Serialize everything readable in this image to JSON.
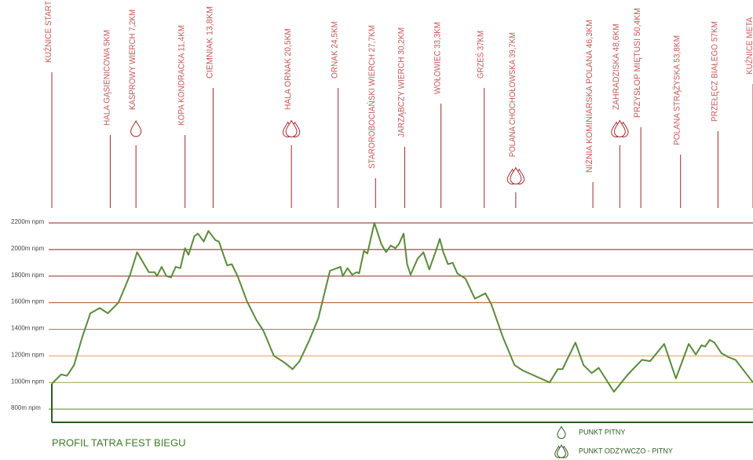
{
  "chart_data": {
    "type": "line",
    "title": "PROFIL TATRA FEST BIEGU",
    "xlim": [
      0,
      60
    ],
    "ylim": [
      700,
      2200
    ],
    "yticks": [
      {
        "value": 800,
        "label": "800m npm"
      },
      {
        "value": 1000,
        "label": "1000m npm"
      },
      {
        "value": 1200,
        "label": "1200m npm"
      },
      {
        "value": 1400,
        "label": "1400m npm"
      },
      {
        "value": 1600,
        "label": "1600m npm"
      },
      {
        "value": 1800,
        "label": "1800m npm"
      },
      {
        "value": 2000,
        "label": "2000m npm"
      },
      {
        "value": 2200,
        "label": "2200m npm"
      }
    ],
    "grid": true,
    "grid_colors": [
      "#5a8a3a",
      "#a0a040",
      "#e0a050",
      "#c8703a",
      "#b0502a",
      "#9a2a20",
      "#8b1f1f",
      "#8b1f1f"
    ],
    "x": [
      0,
      0.8,
      1.3,
      1.9,
      2.6,
      3.3,
      4.1,
      4.8,
      5.7,
      6.7,
      7.3,
      8.3,
      8.8,
      9.0,
      9.4,
      9.8,
      10.2,
      10.6,
      11.0,
      11.4,
      11.7,
      12.2,
      12.5,
      13.0,
      13.4,
      14.0,
      14.3,
      15.0,
      15.4,
      15.9,
      16.7,
      17.5,
      18.1,
      19.0,
      19.9,
      20.6,
      21.2,
      22.0,
      22.8,
      23.8,
      24.7,
      24.9,
      25.3,
      25.7,
      26.1,
      26.3,
      26.7,
      27.0,
      27.6,
      28.2,
      28.6,
      29.0,
      29.4,
      29.7,
      30.1,
      30.4,
      30.7,
      31.3,
      31.8,
      32.3,
      32.9,
      33.2,
      33.5,
      33.9,
      34.3,
      34.7,
      35.4,
      36.2,
      37.1,
      37.6,
      38.6,
      39.6,
      40.3,
      42.6,
      43.3,
      43.7,
      44.8,
      45.5,
      46.2,
      46.8,
      48.1,
      49.3,
      50.5,
      51.2,
      52.4,
      53.4,
      54.5,
      55.1,
      55.6,
      55.9,
      56.3,
      56.7,
      57.3,
      57.9,
      58.5,
      60.0
    ],
    "values": [
      990,
      1060,
      1050,
      1130,
      1340,
      1520,
      1560,
      1520,
      1600,
      1810,
      1980,
      1830,
      1830,
      1800,
      1870,
      1800,
      1790,
      1870,
      1860,
      2010,
      1960,
      2100,
      2120,
      2060,
      2140,
      2070,
      2060,
      1880,
      1890,
      1800,
      1610,
      1470,
      1390,
      1200,
      1150,
      1100,
      1160,
      1310,
      1480,
      1840,
      1870,
      1800,
      1860,
      1810,
      1830,
      1820,
      1990,
      1970,
      2200,
      2040,
      1980,
      2030,
      2010,
      2040,
      2120,
      1890,
      1810,
      1930,
      1980,
      1850,
      2000,
      2080,
      1980,
      1890,
      1900,
      1820,
      1780,
      1630,
      1670,
      1590,
      1340,
      1130,
      1090,
      1000,
      1100,
      1100,
      1300,
      1130,
      1070,
      1110,
      930,
      1060,
      1170,
      1160,
      1290,
      1030,
      1290,
      1210,
      1280,
      1270,
      1320,
      1300,
      1220,
      1190,
      1170,
      1000
    ],
    "waypoints": [
      {
        "label": "KUŹNICE START",
        "km": 0
      },
      {
        "label": "HALA GĄSIENICOWA 5KM",
        "km": 5
      },
      {
        "label": "KASPROWY WIERCH 7,2KM",
        "km": 7.2,
        "icon": "water"
      },
      {
        "label": "KOPA KONDRACKA 11,4KM",
        "km": 11.4
      },
      {
        "label": "CIEMNIAK 13,8KM",
        "km": 13.8
      },
      {
        "label": "HALA ORNAK 20,5KM",
        "km": 20.5,
        "icon": "food"
      },
      {
        "label": "ORNAK 24,5KM",
        "km": 24.5
      },
      {
        "label": "STAROROBOCIAŃSKI WIERCH 27,7KM",
        "km": 27.7
      },
      {
        "label": "JARZĄBCZY WIERCH 30,2KM",
        "km": 30.2
      },
      {
        "label": "WOŁOWIEC 33,3KM",
        "km": 33.3
      },
      {
        "label": "GRZEŚ 37KM",
        "km": 37
      },
      {
        "label": "POLANA CHOCHOŁOWSKA 39,7KM",
        "km": 39.7,
        "icon": "food"
      },
      {
        "label": "NIŻNIA KOMINIARSKA POLANA 46,3KM",
        "km": 46.3
      },
      {
        "label": "ZAHRADZISKA 48,6KM",
        "km": 48.6,
        "icon": "food"
      },
      {
        "label": "PRZYSŁOP MIĘTUSI 50,4KM",
        "km": 50.4
      },
      {
        "label": "POLANA STRĄŻYSKA 53,8KM",
        "km": 53.8
      },
      {
        "label": "PRZEŁĘCZ BIAŁEGO 57KM",
        "km": 57
      },
      {
        "label": "KUŹNICE META",
        "km": 60
      }
    ],
    "legend": [
      {
        "icon": "water",
        "label": "PUNKT PITNY"
      },
      {
        "icon": "food",
        "label": "PUNKT ODŻYWCZO - PITNY"
      }
    ]
  }
}
